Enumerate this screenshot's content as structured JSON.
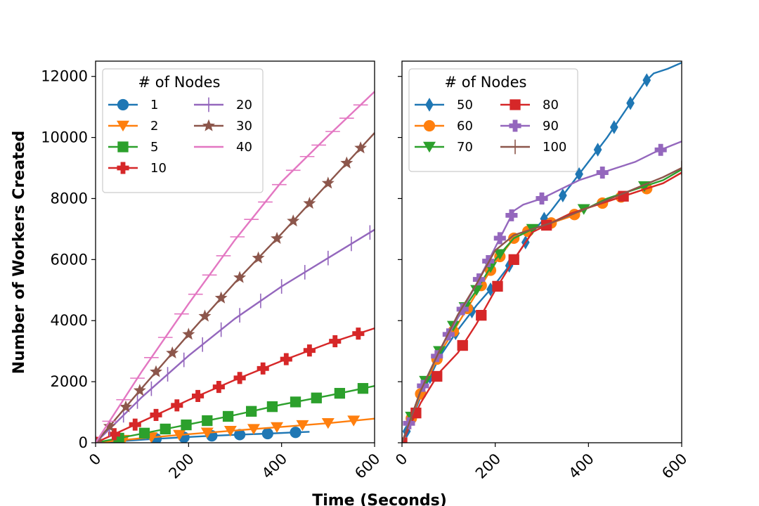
{
  "figure": {
    "ylabel": "Number of Workers Created",
    "xlabel": "Time (Seconds)"
  },
  "chart_data": [
    {
      "type": "line",
      "panel": "left",
      "xlim": [
        0,
        600
      ],
      "ylim": [
        0,
        12500
      ],
      "xticks": [
        0,
        200,
        400,
        600
      ],
      "yticks": [
        0,
        2000,
        4000,
        6000,
        8000,
        10000,
        12000
      ],
      "grid": false,
      "legend": {
        "title": "# of Nodes",
        "placement": "top-left",
        "columns": 2
      },
      "series": [
        {
          "name": "1",
          "color": "#1f77b4",
          "marker": "circle",
          "x": [
            0,
            60,
            120,
            180,
            240,
            300,
            370,
            430,
            460
          ],
          "y": [
            0,
            60,
            120,
            170,
            220,
            260,
            300,
            340,
            360
          ],
          "markers_at": [
            0,
            130,
            190,
            250,
            310,
            370,
            430
          ]
        },
        {
          "name": "2",
          "color": "#ff7f0e",
          "marker": "triangle-down",
          "x": [
            0,
            100,
            200,
            300,
            400,
            500,
            600
          ],
          "y": [
            0,
            150,
            280,
            400,
            520,
            640,
            790
          ],
          "markers_at": [
            0,
            60,
            120,
            180,
            240,
            290,
            340,
            390,
            445,
            500,
            555
          ]
        },
        {
          "name": "5",
          "color": "#2ca02c",
          "marker": "square",
          "x": [
            0,
            100,
            200,
            300,
            400,
            500,
            600
          ],
          "y": [
            0,
            300,
            600,
            910,
            1250,
            1540,
            1860
          ],
          "markers_at": [
            0,
            50,
            105,
            150,
            195,
            240,
            285,
            335,
            380,
            430,
            475,
            525,
            575
          ]
        },
        {
          "name": "10",
          "color": "#d62728",
          "marker": "plus",
          "x": [
            0,
            100,
            200,
            300,
            400,
            500,
            600
          ],
          "y": [
            0,
            700,
            1400,
            2060,
            2680,
            3250,
            3750
          ],
          "markers_at": [
            0,
            40,
            85,
            130,
            175,
            220,
            265,
            310,
            360,
            410,
            460,
            515,
            565
          ]
        },
        {
          "name": "20",
          "color": "#9467bd",
          "marker": "vline",
          "x": [
            0,
            100,
            200,
            300,
            400,
            500,
            600
          ],
          "y": [
            0,
            1500,
            2850,
            4070,
            5120,
            6050,
            6980
          ],
          "markers_at": [
            0,
            30,
            60,
            90,
            120,
            155,
            190,
            230,
            270,
            310,
            355,
            400,
            450,
            500,
            550,
            590
          ]
        },
        {
          "name": "30",
          "color": "#8c564b",
          "marker": "star",
          "x": [
            0,
            100,
            200,
            300,
            400,
            500,
            600
          ],
          "y": [
            0,
            1800,
            3550,
            5250,
            6850,
            8500,
            10150
          ],
          "markers_at": [
            0,
            30,
            65,
            95,
            130,
            165,
            200,
            235,
            270,
            310,
            350,
            390,
            425,
            460,
            500,
            540,
            570
          ]
        },
        {
          "name": "40",
          "color": "#e377c2",
          "marker": "hline",
          "x": [
            0,
            100,
            200,
            300,
            400,
            500,
            600
          ],
          "y": [
            0,
            2350,
            4550,
            6650,
            8550,
            10050,
            11500
          ],
          "markers_at": [
            0,
            30,
            60,
            90,
            120,
            150,
            185,
            215,
            245,
            275,
            305,
            335,
            365,
            395,
            425,
            455,
            480,
            510,
            540,
            570
          ]
        }
      ]
    },
    {
      "type": "line",
      "panel": "right",
      "xlim": [
        0,
        600
      ],
      "ylim": [
        0,
        12500
      ],
      "xticks": [
        0,
        200,
        400,
        600
      ],
      "yticks": [
        0,
        2000,
        4000,
        6000,
        8000,
        10000,
        12000
      ],
      "grid": false,
      "legend": {
        "title": "# of Nodes",
        "placement": "top-left",
        "columns": 2
      },
      "series": [
        {
          "name": "50",
          "color": "#1f77b4",
          "marker": "diamond",
          "x": [
            0,
            40,
            80,
            120,
            160,
            200,
            240,
            280,
            320,
            360,
            400,
            440,
            480,
            520,
            540,
            570,
            600
          ],
          "y": [
            0,
            1500,
            2800,
            3700,
            4500,
            5200,
            6000,
            6900,
            7600,
            8400,
            9200,
            10000,
            10900,
            11800,
            12100,
            12250,
            12450
          ],
          "markers_at": [
            10,
            60,
            115,
            150,
            190,
            230,
            265,
            305,
            345,
            380,
            420,
            455,
            490,
            525
          ]
        },
        {
          "name": "60",
          "color": "#ff7f0e",
          "marker": "circle",
          "x": [
            0,
            40,
            80,
            120,
            160,
            200,
            240,
            280,
            320,
            360,
            400,
            440,
            480,
            520,
            560,
            600
          ],
          "y": [
            0,
            1600,
            2900,
            3900,
            4900,
            5900,
            6700,
            7000,
            7200,
            7400,
            7700,
            7900,
            8100,
            8300,
            8500,
            8850
          ],
          "markers_at": [
            20,
            40,
            75,
            110,
            140,
            170,
            190,
            210,
            240,
            270,
            320,
            370,
            430,
            470,
            525
          ]
        },
        {
          "name": "70",
          "color": "#2ca02c",
          "marker": "triangle-down",
          "x": [
            0,
            40,
            80,
            120,
            160,
            200,
            240,
            280,
            320,
            360,
            400,
            440,
            480,
            520,
            560,
            600
          ],
          "y": [
            0,
            1700,
            3000,
            4100,
            5000,
            6000,
            6700,
            7000,
            7200,
            7500,
            7700,
            8000,
            8200,
            8400,
            8600,
            8950
          ],
          "markers_at": [
            20,
            50,
            80,
            110,
            135,
            160,
            190,
            210,
            280,
            390,
            520
          ]
        },
        {
          "name": "80",
          "color": "#d62728",
          "marker": "square",
          "x": [
            0,
            40,
            80,
            120,
            160,
            200,
            240,
            280,
            320,
            360,
            400,
            440,
            480,
            520,
            560,
            600
          ],
          "y": [
            0,
            1300,
            2300,
            2950,
            3900,
            5000,
            6000,
            6900,
            7200,
            7500,
            7700,
            7900,
            8100,
            8300,
            8500,
            8850
          ],
          "markers_at": [
            0,
            30,
            75,
            130,
            170,
            205,
            240,
            310,
            475
          ]
        },
        {
          "name": "90",
          "color": "#9467bd",
          "marker": "plus",
          "x": [
            0,
            40,
            80,
            120,
            160,
            200,
            220,
            240,
            260,
            300,
            340,
            380,
            420,
            460,
            500,
            540,
            580,
            600
          ],
          "y": [
            0,
            1700,
            3000,
            4100,
            5200,
            6400,
            7000,
            7600,
            7800,
            8000,
            8300,
            8600,
            8800,
            9000,
            9200,
            9500,
            9750,
            9870
          ],
          "markers_at": [
            15,
            45,
            75,
            100,
            130,
            165,
            185,
            210,
            235,
            300,
            430,
            555
          ]
        },
        {
          "name": "100",
          "color": "#8c564b",
          "marker": "vline",
          "x": [
            0,
            40,
            80,
            120,
            160,
            200,
            240,
            280,
            320,
            360,
            400,
            440,
            480,
            520,
            560,
            600
          ],
          "y": [
            0,
            1700,
            3000,
            4200,
            5200,
            6300,
            6800,
            7000,
            7200,
            7450,
            7700,
            7950,
            8200,
            8450,
            8700,
            9000
          ],
          "markers_at": [
            600
          ]
        }
      ]
    }
  ]
}
